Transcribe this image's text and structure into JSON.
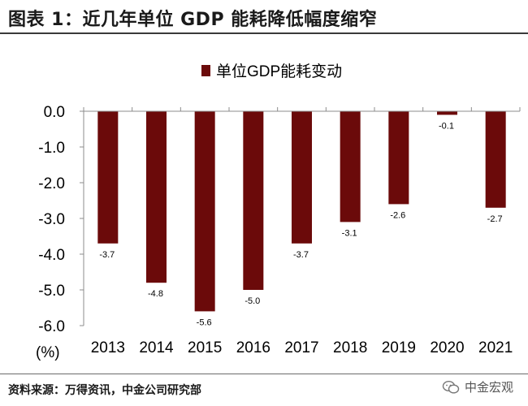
{
  "header": {
    "title": "图表 1：近几年单位 GDP 能耗降低幅度缩窄"
  },
  "footer": {
    "source": "资料来源：万得资讯，中金公司研究部",
    "watermark": "中金宏观"
  },
  "colors": {
    "bar": "#6B0A0A",
    "axis": "#8c8c8c"
  },
  "chart_data": {
    "type": "bar",
    "title": "",
    "categories": [
      "2013",
      "2014",
      "2015",
      "2016",
      "2017",
      "2018",
      "2019",
      "2020",
      "2021"
    ],
    "series": [
      {
        "name": "单位GDP能耗变动",
        "values": [
          -3.7,
          -4.8,
          -5.6,
          -5.0,
          -3.7,
          -3.1,
          -2.6,
          -0.1,
          -2.7
        ]
      }
    ],
    "data_labels": [
      "-3.7",
      "-4.8",
      "-5.6",
      "-5.0",
      "-3.7",
      "-3.1",
      "-2.6",
      "-0.1",
      "-2.7"
    ],
    "ylim": [
      -6.0,
      0.0
    ],
    "yticks": [
      "0.0",
      "-1.0",
      "-2.0",
      "-3.0",
      "-4.0",
      "-5.0",
      "-6.0"
    ],
    "ytick_values": [
      0,
      -1,
      -2,
      -3,
      -4,
      -5,
      -6
    ],
    "yunit": "(%)",
    "xlabel": "",
    "ylabel": "",
    "legend_position": "top-center",
    "grid": false
  }
}
